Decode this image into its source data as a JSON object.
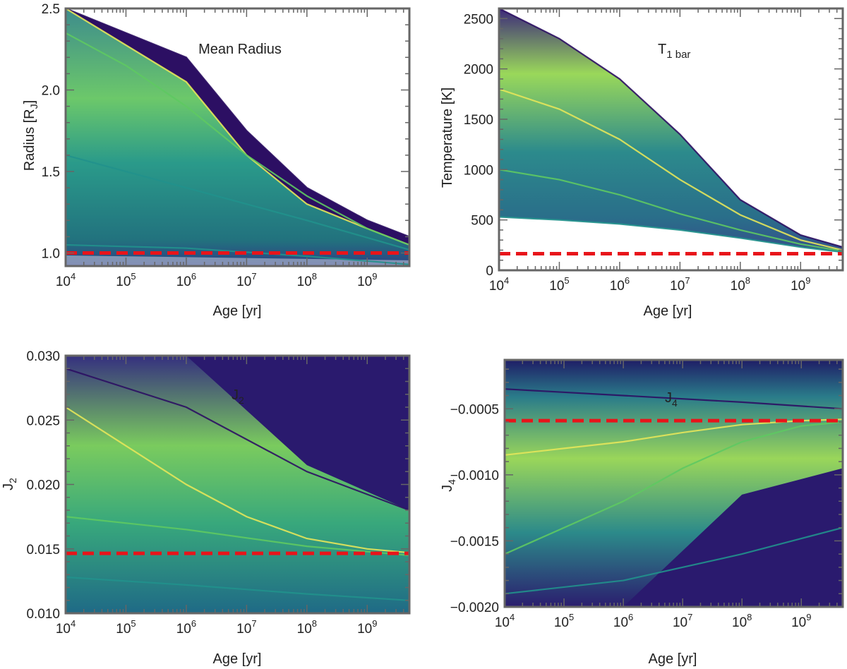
{
  "colors": {
    "ref_line": "#e8141a",
    "frame": "#666666",
    "viridis_dark": "#2c0f63",
    "viridis_teal": "#21918c",
    "viridis_green": "#5ec962",
    "viridis_yellow": "#e4e55a",
    "background_dark": "#2a1a6e"
  },
  "chart_data": [
    {
      "id": "radius",
      "type": "line",
      "title": "Mean Radius",
      "xlabel": "Age [yr]",
      "ylabel": "Radius [R",
      "ylabel_sub": "J",
      "ylabel_end": "]",
      "xscale": "log",
      "xlim": [
        10000,
        5000000000
      ],
      "ylim": [
        0.92,
        2.5
      ],
      "x_ticks": [
        4,
        5,
        6,
        7,
        8,
        9
      ],
      "x_tick_base": "10",
      "y_ticks": [
        1.0,
        1.5,
        2.0,
        2.5
      ],
      "y_tick_labels": [
        "1.0",
        "1.5",
        "2.0",
        "2.5"
      ],
      "reference_line": {
        "y": 1.0,
        "style": "dashed",
        "color": "red"
      },
      "series": [
        {
          "name": "dark-band-upper",
          "x": [
            10000,
            1000000,
            10000000,
            100000000,
            1000000000,
            5000000000
          ],
          "y": [
            2.5,
            2.2,
            1.75,
            1.4,
            1.2,
            1.1
          ]
        },
        {
          "name": "dark-band-lower",
          "x": [
            10000,
            1000000,
            10000000,
            100000000,
            1000000000,
            5000000000
          ],
          "y": [
            2.5,
            2.05,
            1.6,
            1.3,
            1.15,
            1.05
          ]
        },
        {
          "name": "converging-upper",
          "x": [
            10000,
            100000,
            1000000,
            10000000,
            100000000,
            1000000000,
            5000000000
          ],
          "y": [
            2.35,
            2.15,
            1.9,
            1.6,
            1.35,
            1.15,
            1.05
          ]
        },
        {
          "name": "converging-lower",
          "x": [
            10000,
            1000000,
            100000000,
            5000000000
          ],
          "y": [
            1.6,
            1.4,
            1.2,
            1.02
          ]
        },
        {
          "name": "flat-lower",
          "x": [
            10000,
            1000000,
            100000000,
            5000000000
          ],
          "y": [
            1.05,
            1.03,
            0.98,
            0.93
          ]
        }
      ]
    },
    {
      "id": "temperature",
      "type": "line",
      "title": "T",
      "title_sub": "1 bar",
      "xlabel": "Age [yr]",
      "ylabel": "Temperature [K]",
      "xscale": "log",
      "xlim": [
        10000,
        5000000000
      ],
      "ylim": [
        0,
        2600
      ],
      "x_ticks": [
        4,
        5,
        6,
        7,
        8,
        9
      ],
      "x_tick_base": "10",
      "y_ticks": [
        0,
        500,
        1000,
        1500,
        2000,
        2500
      ],
      "y_tick_labels": [
        "0",
        "500",
        "1000",
        "1500",
        "2000",
        "2500"
      ],
      "reference_line": {
        "y": 165,
        "style": "dashed",
        "color": "red"
      },
      "series": [
        {
          "name": "hot-upper",
          "x": [
            10000,
            100000,
            1000000,
            10000000,
            100000000,
            1000000000,
            5000000000
          ],
          "y": [
            2600,
            2300,
            1900,
            1350,
            700,
            350,
            230
          ]
        },
        {
          "name": "warm-middle",
          "x": [
            10000,
            100000,
            1000000,
            10000000,
            100000000,
            1000000000,
            5000000000
          ],
          "y": [
            1800,
            1600,
            1300,
            900,
            550,
            300,
            200
          ]
        },
        {
          "name": "cool-lower",
          "x": [
            10000,
            100000,
            1000000,
            10000000,
            100000000,
            1000000000,
            5000000000
          ],
          "y": [
            1000,
            900,
            750,
            560,
            400,
            260,
            190
          ]
        },
        {
          "name": "coldest",
          "x": [
            10000,
            100000,
            1000000,
            10000000,
            100000000,
            1000000000,
            5000000000
          ],
          "y": [
            530,
            500,
            460,
            400,
            320,
            230,
            180
          ]
        }
      ]
    },
    {
      "id": "j2",
      "type": "line",
      "title": "J",
      "title_sub": "2",
      "xlabel": "Age [yr]",
      "ylabel": "J",
      "ylabel_sub": "2",
      "xscale": "log",
      "xlim": [
        10000,
        5000000000
      ],
      "ylim": [
        0.01,
        0.03
      ],
      "x_ticks": [
        4,
        5,
        6,
        7,
        8,
        9
      ],
      "x_tick_base": "10",
      "y_ticks": [
        0.01,
        0.015,
        0.02,
        0.025,
        0.03
      ],
      "y_tick_labels": [
        "0.010",
        "0.015",
        "0.020",
        "0.025",
        "0.030"
      ],
      "reference_line": {
        "y": 0.01465,
        "style": "dashed",
        "color": "red"
      },
      "series": [
        {
          "name": "upper",
          "x": [
            10000,
            1000000,
            100000000,
            5000000000
          ],
          "y": [
            0.029,
            0.026,
            0.021,
            0.018
          ]
        },
        {
          "name": "converging",
          "x": [
            10000,
            100000,
            1000000,
            10000000,
            100000000,
            1000000000,
            5000000000
          ],
          "y": [
            0.026,
            0.023,
            0.02,
            0.0175,
            0.0158,
            0.015,
            0.0147
          ]
        },
        {
          "name": "lower",
          "x": [
            10000,
            1000000,
            100000000,
            5000000000
          ],
          "y": [
            0.0175,
            0.0165,
            0.0152,
            0.0145
          ]
        },
        {
          "name": "bottom",
          "x": [
            10000,
            1000000,
            100000000,
            5000000000
          ],
          "y": [
            0.0128,
            0.0122,
            0.0115,
            0.011
          ]
        }
      ]
    },
    {
      "id": "j4",
      "type": "line",
      "title": "J",
      "title_sub": "4",
      "xlabel": "Age [yr]",
      "ylabel": "J",
      "ylabel_sub": "4",
      "xscale": "log",
      "xlim": [
        10000,
        5000000000
      ],
      "ylim": [
        -0.002,
        -0.00013
      ],
      "x_ticks": [
        4,
        5,
        6,
        7,
        8,
        9
      ],
      "x_tick_base": "10",
      "y_ticks": [
        -0.002,
        -0.0015,
        -0.001,
        -0.0005
      ],
      "y_tick_labels": [
        "−0.0020",
        "−0.0015",
        "−0.0010",
        "−0.0005"
      ],
      "reference_line": {
        "y": -0.00059,
        "style": "dashed",
        "color": "red"
      },
      "series": [
        {
          "name": "top",
          "x": [
            10000,
            1000000,
            100000000,
            5000000000
          ],
          "y": [
            -0.00035,
            -0.0004,
            -0.00045,
            -0.0005
          ]
        },
        {
          "name": "converging-upper",
          "x": [
            10000,
            100000,
            1000000,
            10000000,
            100000000,
            1000000000,
            5000000000
          ],
          "y": [
            -0.00085,
            -0.0008,
            -0.00075,
            -0.00068,
            -0.00062,
            -0.00059,
            -0.00058
          ]
        },
        {
          "name": "converging-lower",
          "x": [
            10000,
            100000,
            1000000,
            10000000,
            100000000,
            1000000000,
            5000000000
          ],
          "y": [
            -0.0016,
            -0.0014,
            -0.0012,
            -0.00095,
            -0.00075,
            -0.00063,
            -0.0006
          ]
        },
        {
          "name": "bottom",
          "x": [
            10000,
            1000000,
            100000000,
            5000000000
          ],
          "y": [
            -0.0019,
            -0.0018,
            -0.0016,
            -0.0014
          ]
        }
      ]
    }
  ]
}
